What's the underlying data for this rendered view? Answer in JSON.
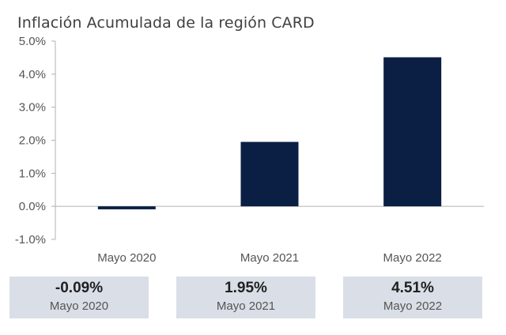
{
  "chart_data": {
    "type": "bar",
    "title": "Inflación Acumulada de la región CARD",
    "categories": [
      "Mayo 2020",
      "Mayo 2021",
      "Mayo 2022"
    ],
    "values": [
      -0.09,
      1.95,
      4.51
    ],
    "ylim": [
      -1.0,
      5.0
    ],
    "yticks": [
      5.0,
      4.0,
      3.0,
      2.0,
      1.0,
      0.0,
      -1.0
    ],
    "ytick_labels": [
      "5.0%",
      "4.0%",
      "3.0%",
      "2.0%",
      "1.0%",
      "0.0%",
      "-1.0%"
    ],
    "xlabel": "",
    "ylabel": "",
    "grid": false,
    "bar_color": "#0b1f45"
  },
  "summary_cards": [
    {
      "value": "-0.09%",
      "label": "Mayo 2020"
    },
    {
      "value": "1.95%",
      "label": "Mayo 2021"
    },
    {
      "value": "4.51%",
      "label": "Mayo 2022"
    }
  ],
  "colors": {
    "card_background": "#d9dee7",
    "axis": "#b0b0b0"
  }
}
